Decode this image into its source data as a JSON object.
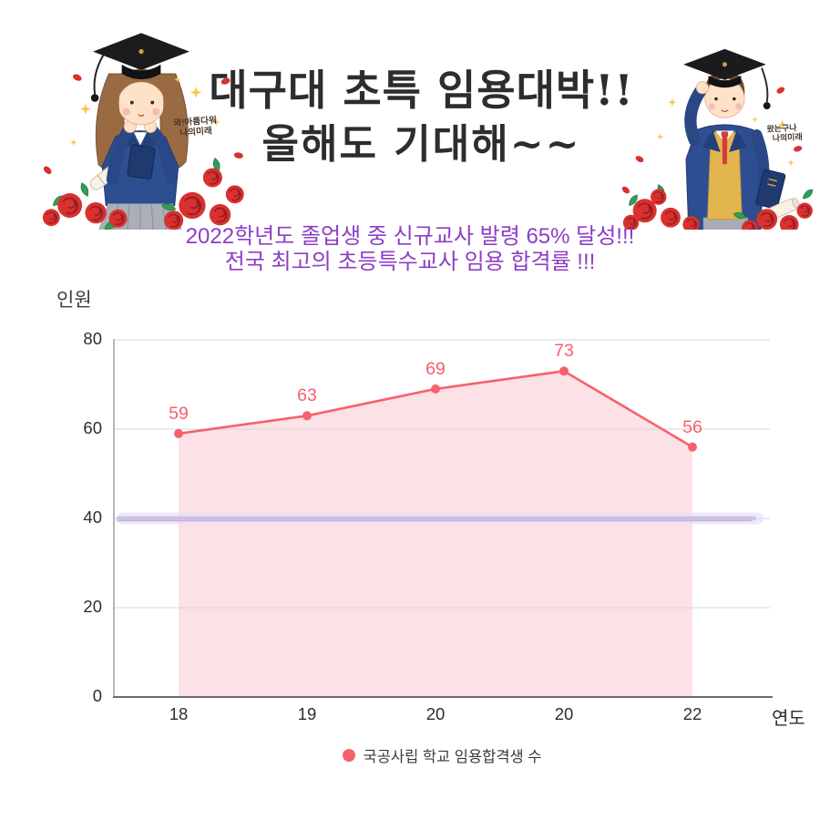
{
  "header": {
    "title_line1": "대구대 초특 임용대박!!",
    "title_line2": "올해도 기대해~~",
    "title_color": "#2d2d2d"
  },
  "announcement": {
    "line1": "2022학년도 졸업생 중 신규교사 발령 65% 달성!!!",
    "line2": "전국 최고의 초등특수교사 임용 합격률 !!!",
    "color": "#8d3ec6"
  },
  "illustrations": {
    "girl_caption_line1": "와!아름다워",
    "girl_caption_line2": "나의미래",
    "boy_caption_line1": "왔는구나",
    "boy_caption_line2": "나의미래",
    "rose_color": "#d8312f",
    "blazer_color": "#2e4e92"
  },
  "chart_data": {
    "type": "area",
    "title": "",
    "x_tick_labels": [
      "18",
      "19",
      "20",
      "20",
      "22"
    ],
    "values": [
      59,
      63,
      69,
      73,
      56
    ],
    "series": [
      {
        "name": "국공사립 학교 임용합격생 수",
        "values": [
          59,
          63,
          69,
          73,
          56
        ]
      }
    ],
    "legend_label": "국공사립 학교 임용합격생 수",
    "xlabel": "연도",
    "ylabel": "인원",
    "y_ticks": [
      80,
      60,
      40,
      20,
      0
    ],
    "ylim": [
      0,
      80
    ],
    "grid": true,
    "legend_position": "bottom",
    "highlight_band": {
      "y": 40,
      "fill": "#e7e0f5",
      "core": "#c7b7e2",
      "edge": "#b5a2d6"
    },
    "colors": {
      "line": "#f5616d",
      "fill": "#fce1e6",
      "gridline": "#d7d7d7",
      "axis": "#9a9a9a",
      "axis_bottom": "#6e6e6e",
      "tick_text": "#2e2e2e"
    }
  }
}
